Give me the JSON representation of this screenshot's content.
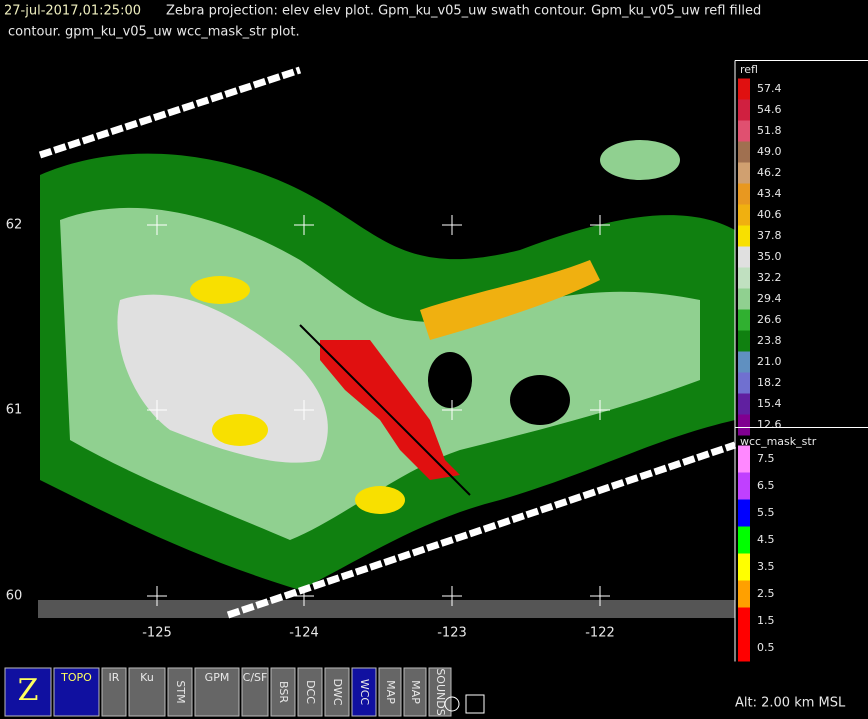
{
  "header": {
    "time": "27-jul-2017,01:25:00",
    "line1": "Zebra projection: elev elev  plot.  Gpm_ku_v05_uw swath contour.  Gpm_ku_v05_uw refl filled",
    "line2": "contour.  gpm_ku_v05_uw wcc_mask_str  plot."
  },
  "map": {
    "x_labels": [
      "-125",
      "-124",
      "-123",
      "-122"
    ],
    "y_labels": [
      "62",
      "61",
      "60"
    ]
  },
  "legend_refl": {
    "title": "refl",
    "labels": [
      "57.4",
      "54.6",
      "51.8",
      "49.0",
      "46.2",
      "43.4",
      "40.6",
      "37.8",
      "35.0",
      "32.2",
      "29.4",
      "26.6",
      "23.8",
      "21.0",
      "18.2",
      "15.4",
      "12.6"
    ],
    "colors": [
      "#e01010",
      "#d02040",
      "#e05070",
      "#a07050",
      "#d0a070",
      "#e89820",
      "#f0b010",
      "#f8e000",
      "#e0e0e0",
      "#c0e0c0",
      "#90d090",
      "#30b030",
      "#108010",
      "#6090c0",
      "#7070d0",
      "#6020a0",
      "#800090"
    ]
  },
  "legend_wcc": {
    "title": "wcc_mask_str",
    "labels": [
      "7.5",
      "6.5",
      "5.5",
      "4.5",
      "3.5",
      "2.5",
      "1.5",
      "0.5"
    ],
    "colors": [
      "#ff88ff",
      "#c040ff",
      "#0000ff",
      "#00ff00",
      "#ffff00",
      "#ffa000",
      "#ff0000",
      "#ff0000"
    ]
  },
  "toolbar": {
    "buttons": [
      "Z",
      "TOPO",
      "IR",
      "Ku",
      "STM",
      "GPM",
      "C/SF",
      "BSR",
      "DCC",
      "DWC",
      "WCC",
      "MAP",
      "MAP",
      "SOUNDS"
    ]
  },
  "status": "Alt: 2.00 km MSL"
}
